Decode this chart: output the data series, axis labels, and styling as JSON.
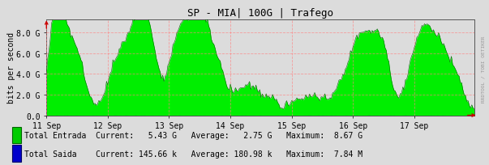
{
  "title": "SP - MIA| 100G | Trafego",
  "ylabel": "bits per second",
  "xtick_labels": [
    "11 Sep",
    "12 Sep",
    "13 Sep",
    "14 Sep",
    "15 Sep",
    "16 Sep",
    "17 Sep"
  ],
  "ytick_labels": [
    "0.0",
    "2.0 G",
    "4.0 G",
    "6.0 G",
    "8.0 G"
  ],
  "ytick_values": [
    0,
    2000000000,
    4000000000,
    6000000000,
    8000000000
  ],
  "ymax": 9300000000,
  "n_points": 336,
  "bg_color": "#dcdcdc",
  "plot_bg_color": "#dcdcdc",
  "grid_color": "#ff8080",
  "fill_color": "#00ee00",
  "line_color": "#006600",
  "fill_color2": "#0000cc",
  "watermark": "RRDTOOL / TOBI OETIKER",
  "arrow_color": "#cc0000",
  "title_fontsize": 9,
  "axis_fontsize": 7,
  "legend_fontsize": 7,
  "legend": [
    {
      "label": "Total Entrada",
      "color": "#00cc00",
      "border": "#006600",
      "current": "5.43 G",
      "average": "2.75 G",
      "maximum": "8.67 G"
    },
    {
      "label": "Total Saida",
      "color": "#0000cc",
      "border": "#000066",
      "current": "145.66 k",
      "average": "180.98 k",
      "maximum": "7.84 M"
    }
  ]
}
